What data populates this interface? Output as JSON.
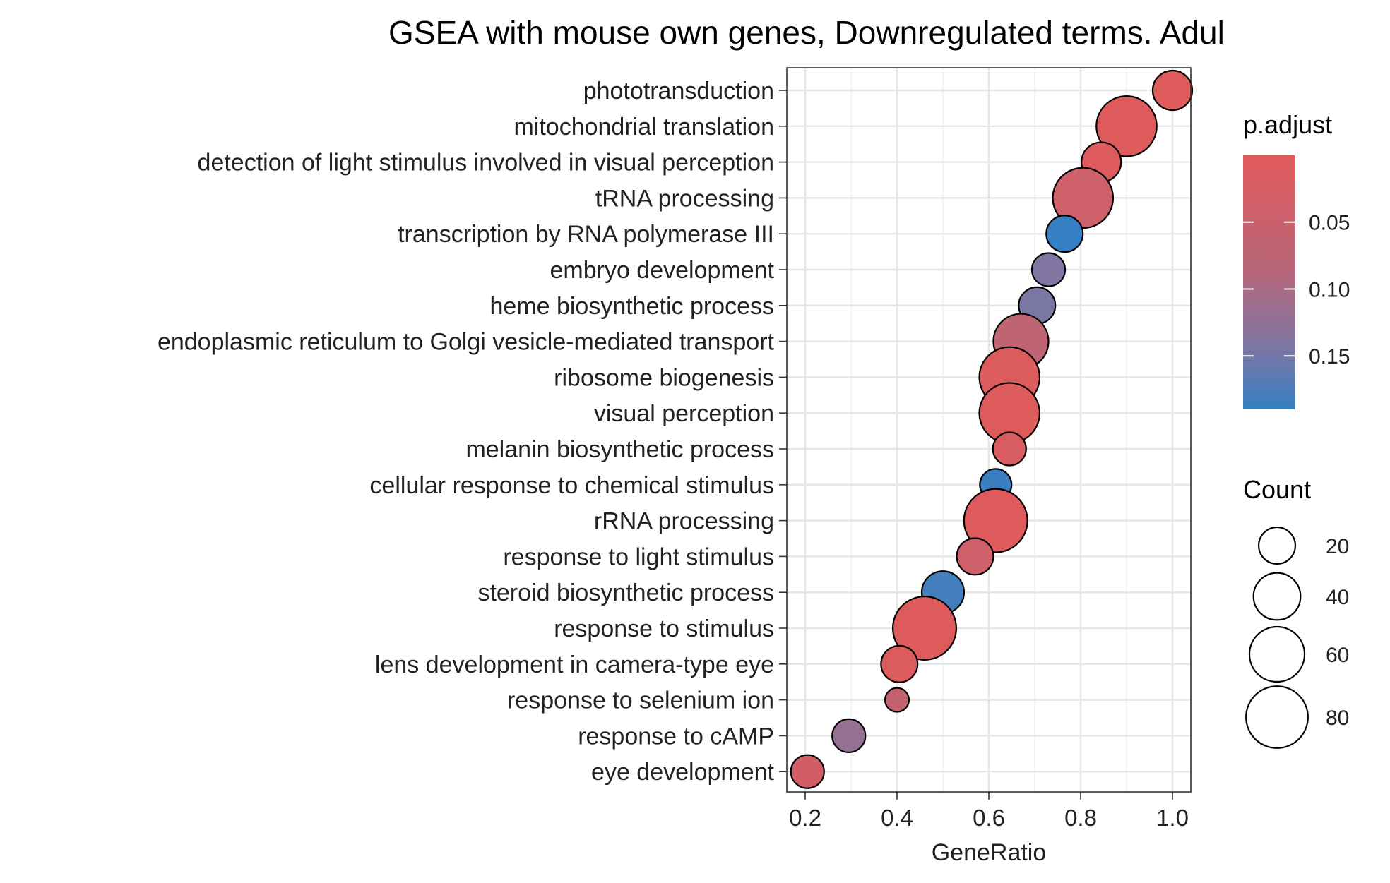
{
  "chart_data": {
    "type": "scatter",
    "title": "GSEA with mouse own genes, Downregulated terms. Adul",
    "xlabel": "GeneRatio",
    "ylabel": "",
    "xlim": [
      0.16,
      1.04
    ],
    "xticks": [
      "0.2",
      "0.4",
      "0.6",
      "0.8",
      "1.0"
    ],
    "xtick_values": [
      0.2,
      0.4,
      0.6,
      0.8,
      1.0
    ],
    "grid": true,
    "legend_placement": "right",
    "color_scale": {
      "title": "p.adjust",
      "low_color": "#E05A5A",
      "high_color": "#3480C3",
      "range": [
        0.0,
        0.19
      ],
      "ticks": [
        "0.05",
        "0.10",
        "0.15"
      ],
      "tick_values": [
        0.05,
        0.1,
        0.15
      ]
    },
    "size_scale": {
      "title": "Count",
      "labels": [
        "20",
        "40",
        "60",
        "80"
      ],
      "values": [
        20,
        40,
        60,
        80
      ]
    },
    "points": [
      {
        "term": "phototransduction",
        "x": 1.0,
        "count": 25,
        "p_adjust": 0.004
      },
      {
        "term": "mitochondrial translation",
        "x": 0.9,
        "count": 75,
        "p_adjust": 0.004
      },
      {
        "term": "detection of light stimulus involved in visual perception",
        "x": 0.845,
        "count": 25,
        "p_adjust": 0.006
      },
      {
        "term": "tRNA processing",
        "x": 0.805,
        "count": 75,
        "p_adjust": 0.04
      },
      {
        "term": "transcription by RNA polymerase III",
        "x": 0.765,
        "count": 20,
        "p_adjust": 0.19
      },
      {
        "term": "embryo development",
        "x": 0.73,
        "count": 15,
        "p_adjust": 0.14
      },
      {
        "term": "heme biosynthetic process",
        "x": 0.705,
        "count": 20,
        "p_adjust": 0.145
      },
      {
        "term": "endoplasmic reticulum to Golgi vesicle-mediated transport",
        "x": 0.67,
        "count": 60,
        "p_adjust": 0.07
      },
      {
        "term": "ribosome biogenesis",
        "x": 0.645,
        "count": 75,
        "p_adjust": 0.008
      },
      {
        "term": "visual perception",
        "x": 0.645,
        "count": 75,
        "p_adjust": 0.005
      },
      {
        "term": "melanin biosynthetic process",
        "x": 0.645,
        "count": 15,
        "p_adjust": 0.02
      },
      {
        "term": "cellular response to chemical stimulus",
        "x": 0.615,
        "count": 13,
        "p_adjust": 0.185
      },
      {
        "term": "rRNA processing",
        "x": 0.615,
        "count": 85,
        "p_adjust": 0.006
      },
      {
        "term": "response to light stimulus",
        "x": 0.57,
        "count": 20,
        "p_adjust": 0.04
      },
      {
        "term": "steroid biosynthetic process",
        "x": 0.5,
        "count": 30,
        "p_adjust": 0.18
      },
      {
        "term": "response to stimulus",
        "x": 0.46,
        "count": 85,
        "p_adjust": 0.004
      },
      {
        "term": "lens development in camera-type eye",
        "x": 0.405,
        "count": 20,
        "p_adjust": 0.01
      },
      {
        "term": "response to selenium ion",
        "x": 0.4,
        "count": 5,
        "p_adjust": 0.06
      },
      {
        "term": "response to cAMP",
        "x": 0.295,
        "count": 15,
        "p_adjust": 0.12
      },
      {
        "term": "eye development",
        "x": 0.205,
        "count": 15,
        "p_adjust": 0.03
      }
    ]
  }
}
